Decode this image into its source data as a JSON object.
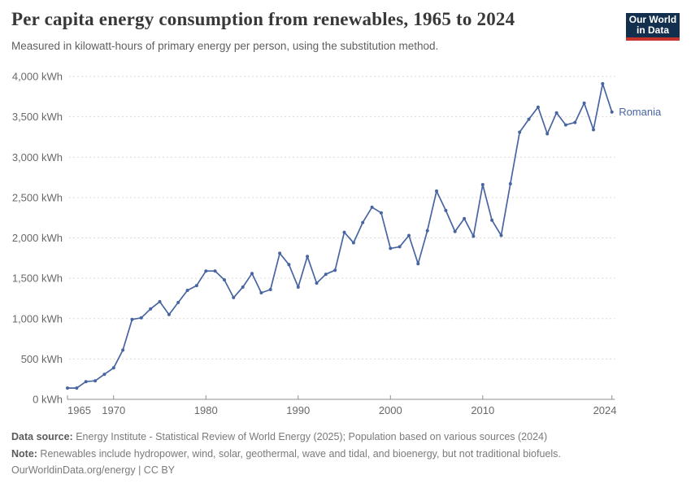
{
  "header": {
    "title": "Per capita energy consumption from renewables, 1965 to 2024",
    "subtitle": "Measured in kilowatt-hours of primary energy per person, using the substitution method."
  },
  "logo": {
    "line1": "Our World",
    "line2": "in Data",
    "background_color": "#12304e",
    "accent_color": "#c5332a"
  },
  "chart_data": {
    "type": "line",
    "title": "Per capita energy consumption from renewables, 1965 to 2024",
    "unit": "kWh",
    "x_range": [
      1965,
      2024
    ],
    "y_range": [
      0,
      4000
    ],
    "grid": "horizontal-dashed",
    "legend_position": "end-of-line-label",
    "x_ticks": [
      {
        "value": 1965,
        "label": "1965"
      },
      {
        "value": 1970,
        "label": "1970"
      },
      {
        "value": 1980,
        "label": "1980"
      },
      {
        "value": 1990,
        "label": "1990"
      },
      {
        "value": 2000,
        "label": "2000"
      },
      {
        "value": 2010,
        "label": "2010"
      },
      {
        "value": 2024,
        "label": "2024"
      }
    ],
    "y_ticks": [
      {
        "value": 0,
        "label": "0 kWh"
      },
      {
        "value": 500,
        "label": "500 kWh"
      },
      {
        "value": 1000,
        "label": "1,000 kWh"
      },
      {
        "value": 1500,
        "label": "1,500 kWh"
      },
      {
        "value": 2000,
        "label": "2,000 kWh"
      },
      {
        "value": 2500,
        "label": "2,500 kWh"
      },
      {
        "value": 3000,
        "label": "3,000 kWh"
      },
      {
        "value": 3500,
        "label": "3,500 kWh"
      },
      {
        "value": 4000,
        "label": "4,000 kWh"
      }
    ],
    "series": [
      {
        "name": "Romania",
        "color": "#4865a2",
        "years": [
          1965,
          1966,
          1967,
          1968,
          1969,
          1970,
          1971,
          1972,
          1973,
          1974,
          1975,
          1976,
          1977,
          1978,
          1979,
          1980,
          1981,
          1982,
          1983,
          1984,
          1985,
          1986,
          1987,
          1988,
          1989,
          1990,
          1991,
          1992,
          1993,
          1994,
          1995,
          1996,
          1997,
          1998,
          1999,
          2000,
          2001,
          2002,
          2003,
          2004,
          2005,
          2006,
          2007,
          2008,
          2009,
          2010,
          2011,
          2012,
          2013,
          2014,
          2015,
          2016,
          2017,
          2018,
          2019,
          2020,
          2021,
          2022,
          2023,
          2024
        ],
        "values": [
          140,
          140,
          220,
          230,
          310,
          390,
          610,
          990,
          1010,
          1120,
          1210,
          1050,
          1200,
          1350,
          1410,
          1590,
          1590,
          1480,
          1260,
          1390,
          1560,
          1320,
          1360,
          1810,
          1670,
          1390,
          1770,
          1440,
          1550,
          1600,
          2070,
          1940,
          2190,
          2380,
          2310,
          1870,
          1890,
          2030,
          1680,
          2090,
          2580,
          2340,
          2080,
          2240,
          2020,
          2660,
          2220,
          2030,
          2670,
          3310,
          3470,
          3620,
          3290,
          3550,
          3400,
          3430,
          3670,
          3340,
          3910,
          3560
        ]
      }
    ]
  },
  "footer": {
    "datasource_label": "Data source:",
    "datasource_text": " Energy Institute - Statistical Review of World Energy (2025); Population based on various sources (2024)",
    "note_label": "Note:",
    "note_text": " Renewables include hydropower, wind, solar, geothermal, wave and tidal, and bioenergy, but not traditional biofuels.",
    "license": "OurWorldinData.org/energy | CC BY"
  }
}
